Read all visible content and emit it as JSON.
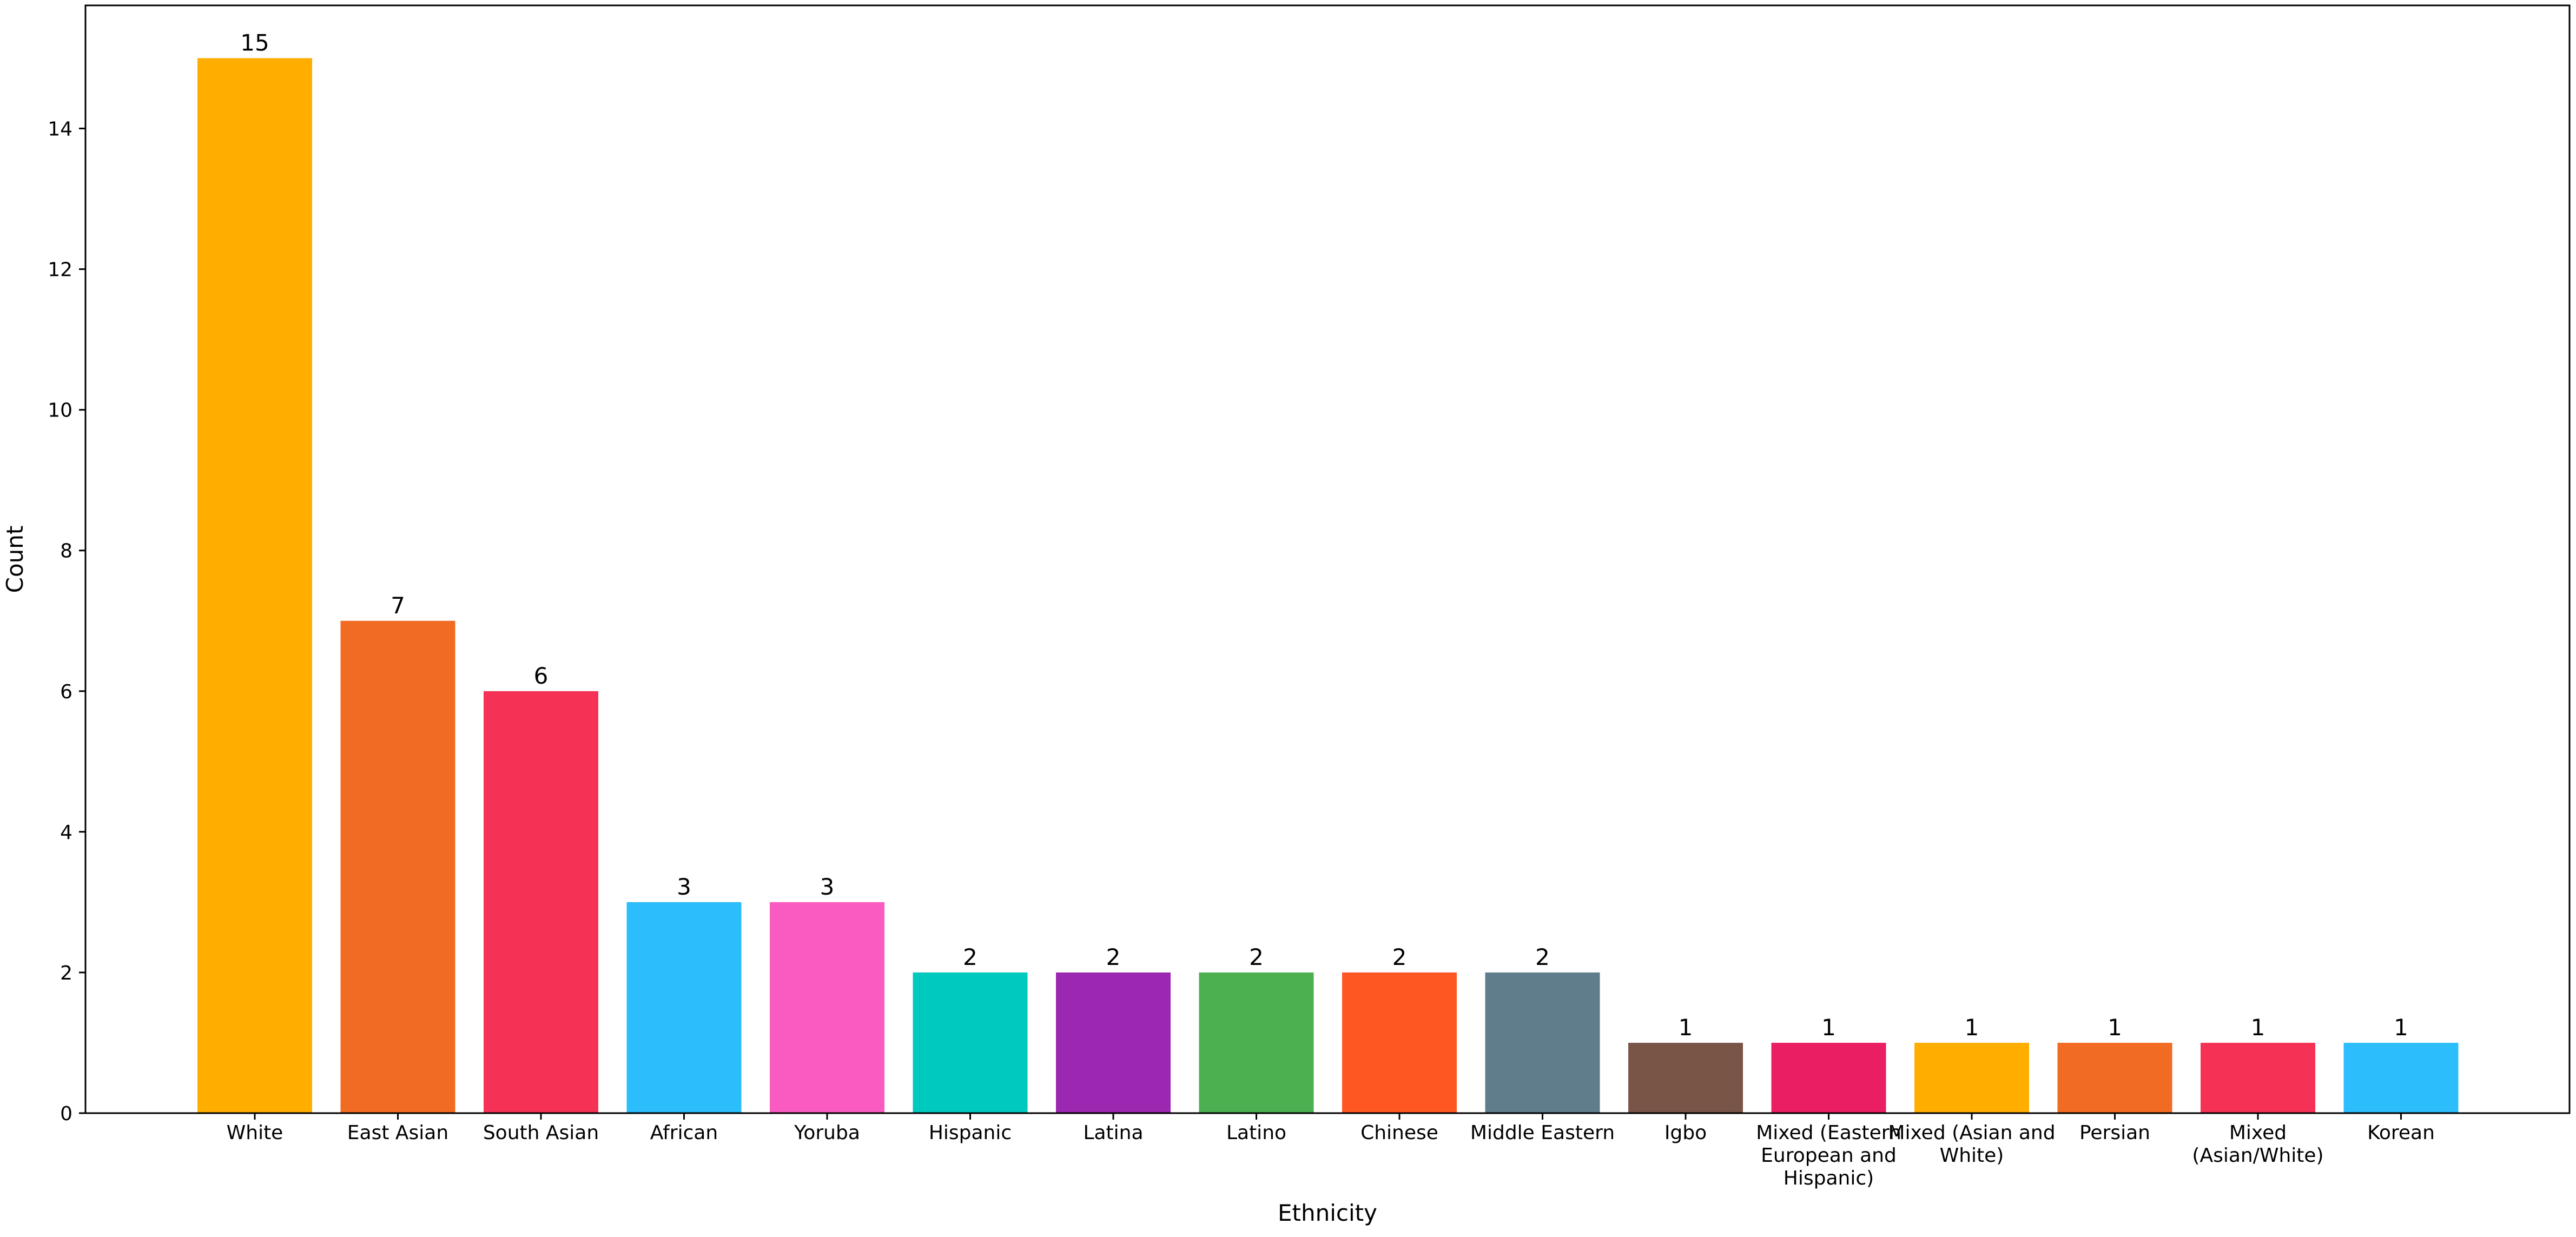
{
  "chart_data": {
    "type": "bar",
    "title": "",
    "xlabel": "Ethnicity",
    "ylabel": "Count",
    "ylim": [
      0,
      15.75
    ],
    "yticks": [
      0,
      2,
      4,
      6,
      8,
      10,
      12,
      14
    ],
    "grid": false,
    "legend": "none",
    "categories": [
      "White",
      "East Asian",
      "South Asian",
      "African",
      "Yoruba",
      "Hispanic",
      "Latina",
      "Latino",
      "Chinese",
      "Middle Eastern",
      "Igbo",
      "Mixed (Eastern European and Hispanic)",
      "Mixed (Asian and White)",
      "Persian",
      "Mixed (Asian/White)",
      "Korean"
    ],
    "category_lines": [
      [
        "White"
      ],
      [
        "East Asian"
      ],
      [
        "South Asian"
      ],
      [
        "African"
      ],
      [
        "Yoruba"
      ],
      [
        "Hispanic"
      ],
      [
        "Latina"
      ],
      [
        "Latino"
      ],
      [
        "Chinese"
      ],
      [
        "Middle Eastern"
      ],
      [
        "Igbo"
      ],
      [
        "Mixed (Eastern",
        "European and",
        "Hispanic)"
      ],
      [
        "Mixed (Asian and",
        "White)"
      ],
      [
        "Persian"
      ],
      [
        "Mixed",
        "(Asian/White)"
      ],
      [
        "Korean"
      ]
    ],
    "values": [
      15,
      7,
      6,
      3,
      3,
      2,
      2,
      2,
      2,
      2,
      1,
      1,
      1,
      1,
      1,
      1
    ],
    "colors": [
      "#FFAE00",
      "#F26B22",
      "#F53255",
      "#2BBDFC",
      "#F95BC0",
      "#00C9BF",
      "#9C27B0",
      "#4CAF50",
      "#FF5722",
      "#607D8B",
      "#795548",
      "#E91E63",
      "#FFAE00",
      "#F26B22",
      "#F53255",
      "#2BBDFC"
    ]
  }
}
